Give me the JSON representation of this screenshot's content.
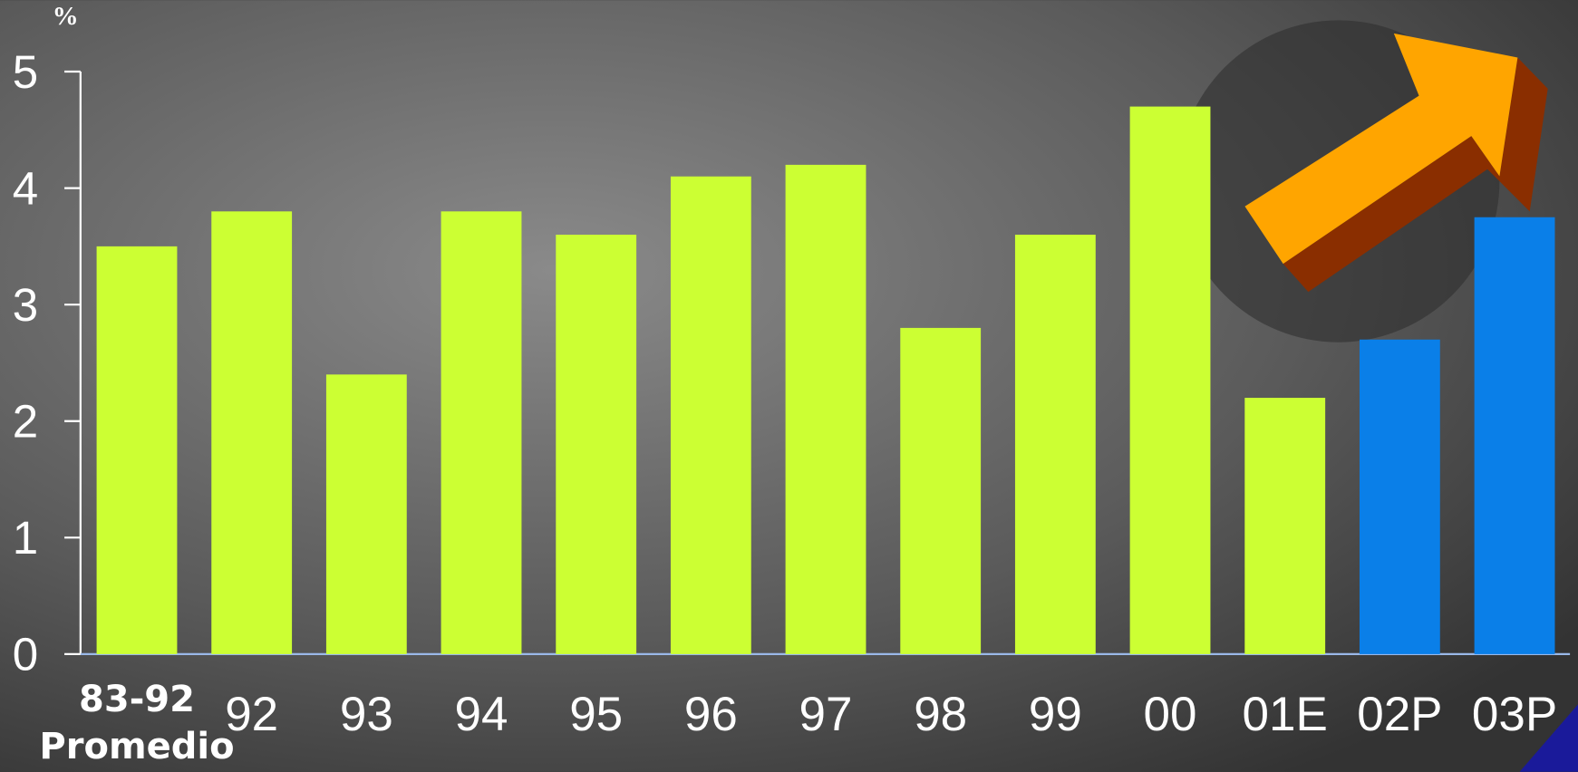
{
  "chart_data": {
    "type": "bar",
    "y_label": "%",
    "categories": [
      "83-92\nPromedio",
      "92",
      "93",
      "94",
      "95",
      "96",
      "97",
      "98",
      "99",
      "00",
      "01E",
      "02P",
      "03P"
    ],
    "values": [
      3.5,
      3.8,
      2.4,
      3.8,
      3.6,
      4.1,
      4.2,
      2.8,
      3.6,
      4.7,
      2.2,
      2.7,
      3.75
    ],
    "colors": [
      "#ccff33",
      "#ccff33",
      "#ccff33",
      "#ccff33",
      "#ccff33",
      "#ccff33",
      "#ccff33",
      "#ccff33",
      "#ccff33",
      "#ccff33",
      "#ccff33",
      "#0a7fe8",
      "#0a7fe8"
    ],
    "ylim": [
      0,
      5
    ],
    "yticks": [
      0,
      1,
      2,
      3,
      4,
      5
    ]
  }
}
